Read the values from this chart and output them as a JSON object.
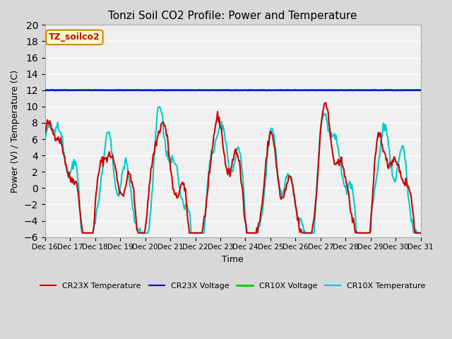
{
  "title": "Tonzi Soil CO2 Profile: Power and Temperature",
  "ylabel": "Power (V) / Temperature (C)",
  "xlabel": "Time",
  "ylim": [
    -6,
    20
  ],
  "yticks": [
    -6,
    -4,
    -2,
    0,
    2,
    4,
    6,
    8,
    10,
    12,
    14,
    16,
    18,
    20
  ],
  "bg_color": "#e8e8e8",
  "plot_bg": "#f0f0f0",
  "annotation_text": "TZ_soilco2",
  "annotation_bg": "#ffffcc",
  "annotation_border": "#cc8800",
  "legend_items": [
    {
      "label": "CR23X Temperature",
      "color": "#cc0000",
      "lw": 1.5
    },
    {
      "label": "CR23X Voltage",
      "color": "#0000cc",
      "lw": 1.5
    },
    {
      "label": "CR10X Voltage",
      "color": "#00cc00",
      "lw": 2.0
    },
    {
      "label": "CR10X Temperature",
      "color": "#00cccc",
      "lw": 1.5
    }
  ],
  "x_tick_labels": [
    "Dec 16",
    "Dec 17",
    "Dec 18",
    "Dec 19",
    "Dec 20",
    "Dec 21",
    "Dec 22",
    "Dec 23",
    "Dec 24",
    "Dec 25",
    "Dec 26",
    "Dec 27",
    "Dec 28",
    "Dec 29",
    "Dec 30",
    "Dec 31"
  ],
  "n_points": 480,
  "cr23x_temp_seed": 42,
  "cr10x_temp_seed": 43,
  "voltage_value": 12.0
}
